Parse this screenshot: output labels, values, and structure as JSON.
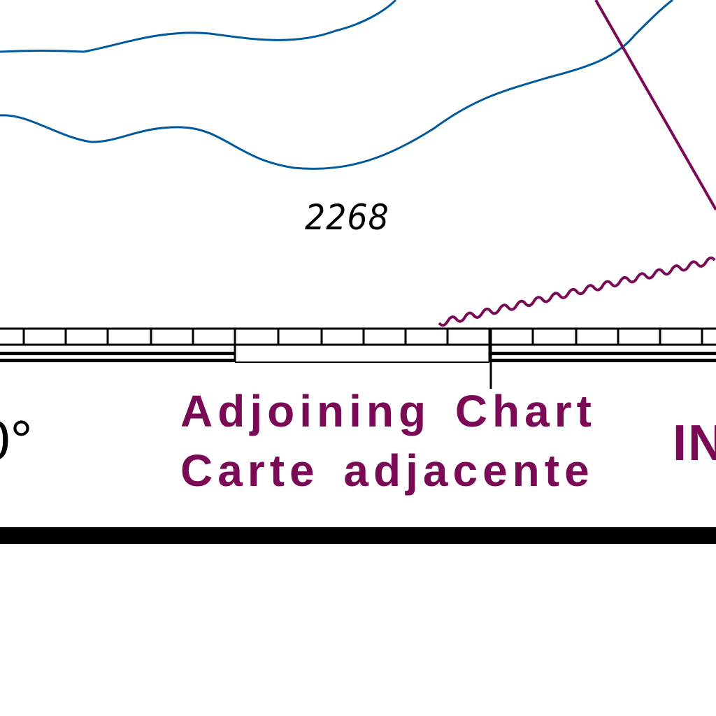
{
  "colors": {
    "depth_contour": "#005a9c",
    "magenta": "#7a0a55",
    "ink": "#000000",
    "background": "#ffffff"
  },
  "labels": {
    "sounding": "2268",
    "adjoining_en": "Adjoining Chart",
    "adjoining_fr": "Carte adjacente",
    "degree_fragment": "0°",
    "edge_fragment": "IN"
  }
}
